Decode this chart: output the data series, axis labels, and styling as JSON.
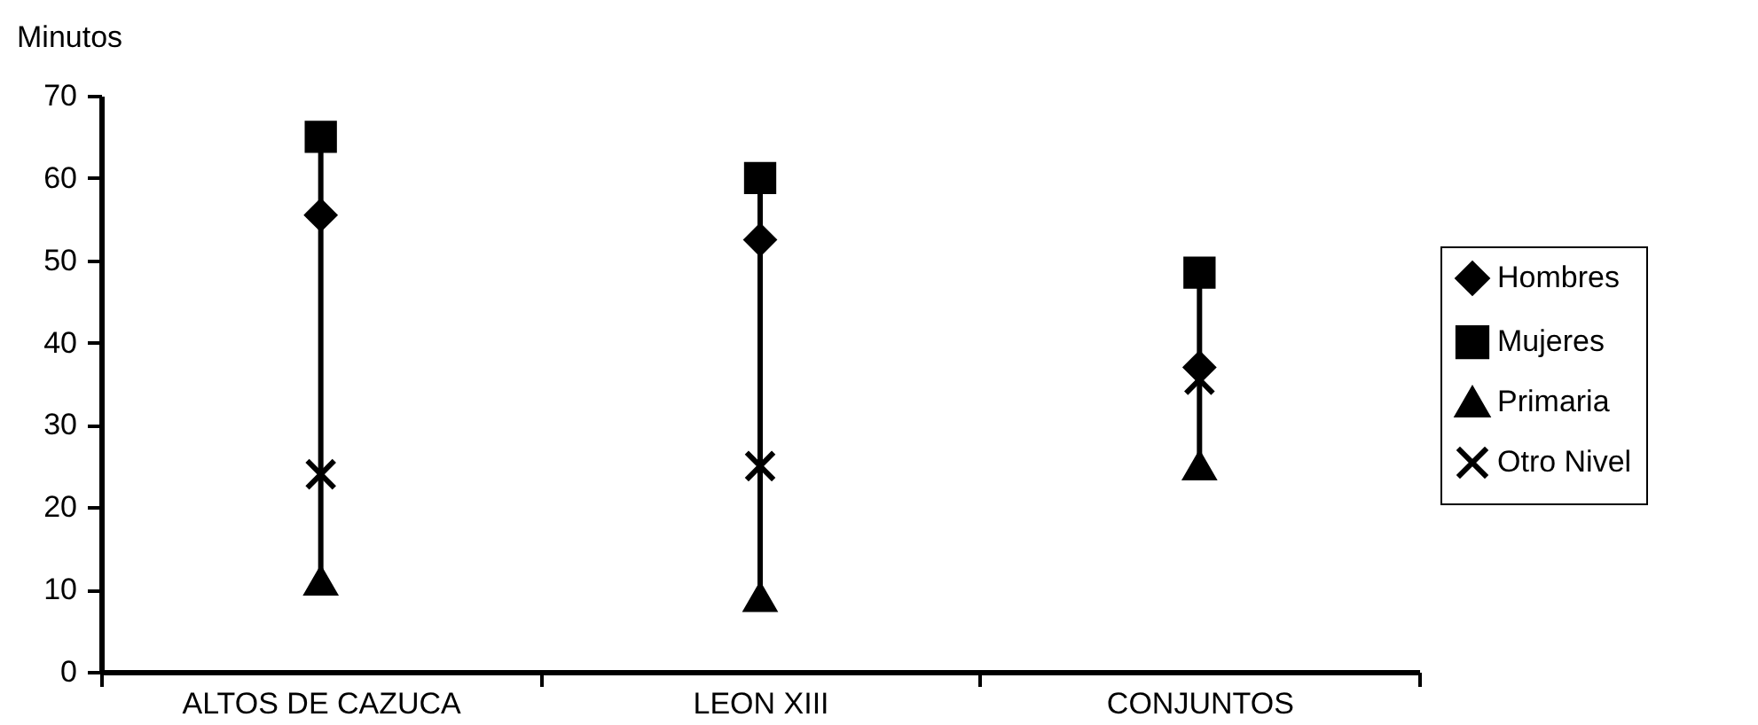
{
  "chart_data": {
    "type": "scatter",
    "ylabel": "Minutos",
    "categories": [
      "ALTOS DE CAZUCA",
      "LEON XIII",
      "CONJUNTOS"
    ],
    "series": [
      {
        "name": "Hombres",
        "color": "#000000",
        "marker": "diamond",
        "values": [
          55.5,
          52.5,
          37
        ]
      },
      {
        "name": "Mujeres",
        "color": "#000000",
        "marker": "square",
        "values": [
          65,
          60,
          48.5
        ]
      },
      {
        "name": "Primaria",
        "color": "#000000",
        "marker": "triangle",
        "values": [
          11,
          9,
          25
        ]
      },
      {
        "name": "Otro Nivel",
        "color": "#000000",
        "marker": "cross",
        "values": [
          24,
          25,
          35.5
        ]
      }
    ],
    "ylim": [
      0,
      70
    ],
    "yticks": [
      0,
      10,
      20,
      30,
      40,
      50,
      60,
      70
    ],
    "legend": "right"
  }
}
